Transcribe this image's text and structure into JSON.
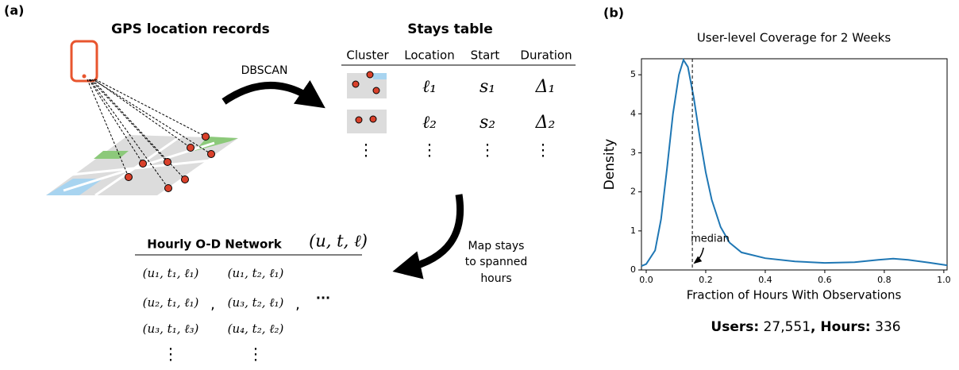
{
  "panel_a": {
    "label": "(a)",
    "gps_title": "GPS location records",
    "dbscan": "DBSCAN",
    "stays": {
      "title": "Stays table",
      "headers": [
        "Cluster",
        "Location",
        "Start",
        "Duration"
      ],
      "rows": [
        [
          "ℓ₁",
          "s₁",
          "Δ₁"
        ],
        [
          "ℓ₂",
          "s₂",
          "Δ₂"
        ],
        [
          "⋮",
          "⋮",
          "⋮",
          "⋮"
        ]
      ]
    },
    "map_note": [
      "Map stays",
      "to spanned",
      "hours"
    ],
    "network": {
      "title": "Hourly O-D Network",
      "tuple": "(u, t, ℓ)",
      "rows": [
        [
          "(u₁, t₁, ℓ₁)",
          "(u₁, t₂, ℓ₁)"
        ],
        [
          "(u₂, t₁, ℓ₁)",
          ",",
          "(u₃, t₂, ℓ₁)",
          ",",
          "···"
        ],
        [
          "(u₃, t₁, ℓ₃)",
          "(u₄, t₂, ℓ₂)"
        ],
        [
          "⋮",
          "⋮"
        ]
      ]
    }
  },
  "chart_data": {
    "type": "line",
    "panel_label": "(b)",
    "title": "User-level Coverage for 2 Weeks",
    "x_label": "Fraction of Hours With Observations",
    "y_label": "Density",
    "color": "#1f77b4",
    "x": [
      -0.016,
      0.0,
      0.03,
      0.05,
      0.07,
      0.09,
      0.11,
      0.125,
      0.14,
      0.16,
      0.18,
      0.2,
      0.22,
      0.25,
      0.28,
      0.32,
      0.4,
      0.5,
      0.6,
      0.7,
      0.78,
      0.83,
      0.88,
      0.95,
      1.011
    ],
    "values": [
      0.1,
      0.15,
      0.5,
      1.3,
      2.6,
      4.0,
      5.0,
      5.38,
      5.2,
      4.4,
      3.4,
      2.5,
      1.8,
      1.1,
      0.7,
      0.45,
      0.3,
      0.22,
      0.18,
      0.2,
      0.26,
      0.29,
      0.26,
      0.19,
      0.12
    ],
    "xlim": [
      -0.016,
      1.011
    ],
    "ylim": [
      0,
      5.41
    ],
    "xticks": [
      {
        "value": 0,
        "label": "0.0"
      },
      {
        "value": 0.2,
        "label": "0.2"
      },
      {
        "value": 0.4,
        "label": "0.4"
      },
      {
        "value": 0.6,
        "label": "0.6"
      },
      {
        "value": 0.8,
        "label": "0.8"
      },
      {
        "value": 1,
        "label": "1.0"
      }
    ],
    "yticks": [
      0,
      1,
      2,
      3,
      4,
      5
    ],
    "median": {
      "x": 0.155,
      "label": "median"
    },
    "footer": [
      "Users:",
      " 27,551",
      ", Hours:",
      " 336"
    ]
  }
}
